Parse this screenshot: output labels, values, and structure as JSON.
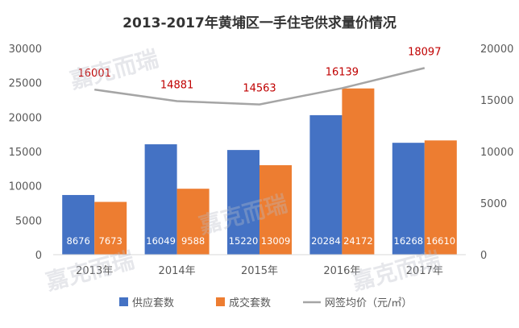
{
  "chart_data": {
    "type": "bar",
    "title": "2013-2017年黄埔区一手住宅供求量价情况",
    "categories": [
      "2013年",
      "2014年",
      "2015年",
      "2016年",
      "2017年"
    ],
    "series": [
      {
        "name": "供应套数",
        "kind": "bar",
        "axis": "left",
        "color": "#4472C4",
        "values": [
          8676,
          16049,
          15220,
          20284,
          16268
        ]
      },
      {
        "name": "成交套数",
        "kind": "bar",
        "axis": "left",
        "color": "#ED7D31",
        "values": [
          7673,
          9588,
          13009,
          24172,
          16610
        ]
      },
      {
        "name": "网签均价（元/㎡）",
        "kind": "line",
        "axis": "right",
        "color": "#A5A5A5",
        "values": [
          16001,
          14881,
          14563,
          16139,
          18097
        ]
      }
    ],
    "ylim_left": [
      0,
      30000
    ],
    "yticks_left": [
      0,
      5000,
      10000,
      15000,
      20000,
      25000,
      30000
    ],
    "ylim_right": [
      0,
      20000
    ],
    "yticks_right": [
      0,
      5000,
      10000,
      15000,
      20000
    ],
    "line_label_color": "#C00000",
    "legend_position": "bottom",
    "grid": false
  }
}
